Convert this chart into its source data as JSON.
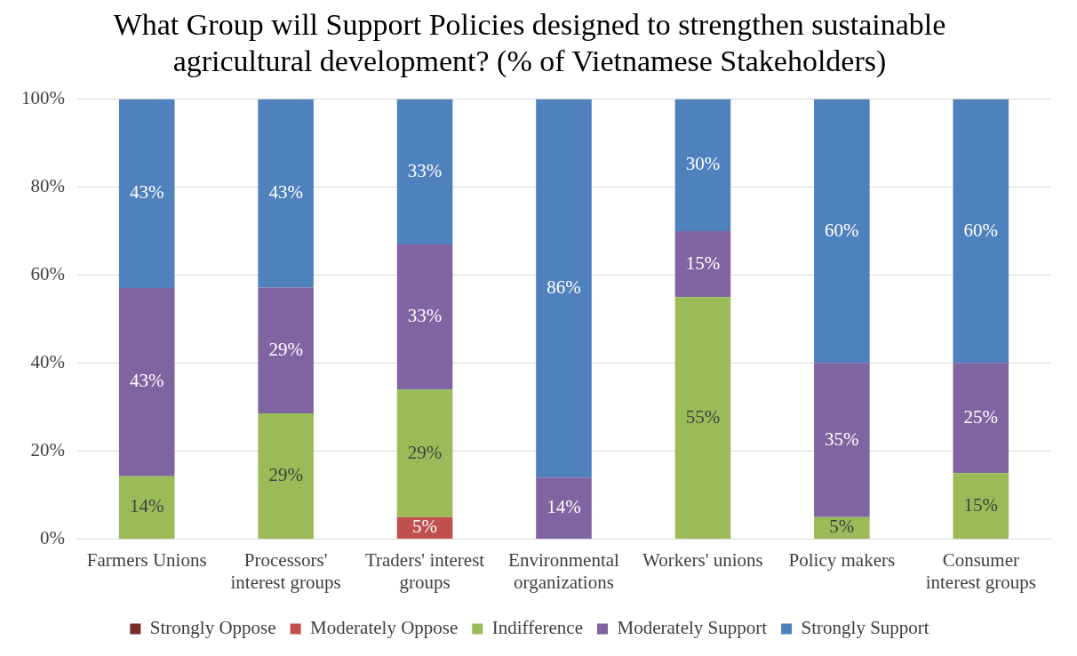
{
  "chart_data": {
    "type": "bar",
    "stacked": true,
    "title": "What Group will Support Policies designed to strengthen sustainable agricultural development? (% of Vietnamese Stakeholders)",
    "categories": [
      "Farmers Unions",
      "Processors' interest groups",
      "Traders' interest groups",
      "Environmental organizations",
      "Workers' unions",
      "Policy makers",
      "Consumer interest groups"
    ],
    "series": [
      {
        "name": "Strongly Oppose",
        "color": "#772c2a",
        "values": [
          0,
          0,
          0,
          0,
          0,
          0,
          0
        ],
        "value_labels": [
          null,
          null,
          null,
          null,
          null,
          null,
          null
        ]
      },
      {
        "name": "Moderately Oppose",
        "color": "#c0504d",
        "values": [
          0,
          0,
          5,
          0,
          0,
          0,
          0
        ],
        "value_labels": [
          null,
          null,
          "5%",
          null,
          null,
          null,
          null
        ]
      },
      {
        "name": "Indifference",
        "color": "#9bbb59",
        "values": [
          14.3,
          28.6,
          29,
          0,
          55,
          5,
          15
        ],
        "value_labels": [
          "14%",
          "29%",
          "29%",
          null,
          "55%",
          "5%",
          "15%"
        ]
      },
      {
        "name": "Moderately Support",
        "color": "#8064a2",
        "values": [
          42.8,
          28.6,
          33,
          14,
          15,
          35,
          25
        ],
        "value_labels": [
          "43%",
          "29%",
          "33%",
          "14%",
          "15%",
          "35%",
          "25%"
        ]
      },
      {
        "name": "Strongly Support",
        "color": "#4f81bd",
        "values": [
          42.9,
          42.8,
          33,
          86,
          30,
          60,
          60
        ],
        "value_labels": [
          "43%",
          "43%",
          "33%",
          "86%",
          "30%",
          "60%",
          "60%"
        ]
      }
    ],
    "ylim": [
      0,
      100
    ],
    "yticks": [
      {
        "value": 0,
        "label": "0%"
      },
      {
        "value": 20,
        "label": "20%"
      },
      {
        "value": 40,
        "label": "40%"
      },
      {
        "value": 60,
        "label": "60%"
      },
      {
        "value": 80,
        "label": "80%"
      },
      {
        "value": 100,
        "label": "100%"
      }
    ],
    "grid": "y",
    "legend": "bottom"
  }
}
